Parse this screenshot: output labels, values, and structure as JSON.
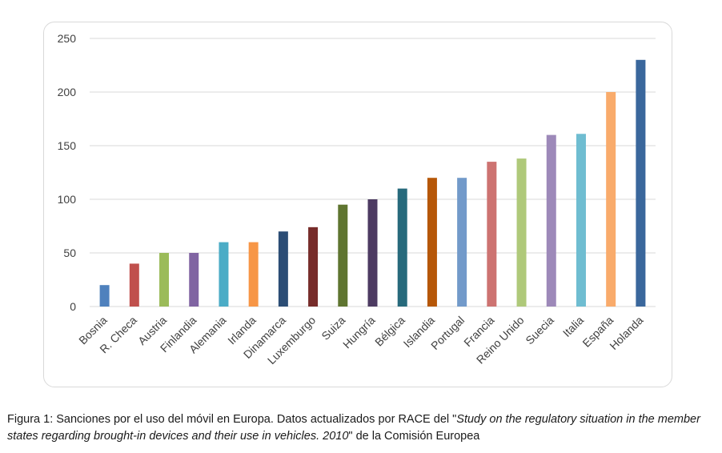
{
  "chart_data": {
    "type": "bar",
    "categories": [
      "Bosnia",
      "R. Checa",
      "Austria",
      "Finlandia",
      "Alemania",
      "Irlanda",
      "Dinamarca",
      "Luxemburgo",
      "Suiza",
      "Hungría",
      "Bélgica",
      "Islandia",
      "Portugal",
      "Francia",
      "Reino Unido",
      "Suecia",
      "Italia",
      "España",
      "Holanda"
    ],
    "values": [
      20,
      40,
      50,
      50,
      60,
      60,
      70,
      74,
      95,
      100,
      110,
      120,
      120,
      135,
      138,
      160,
      161,
      200,
      230
    ],
    "colors": [
      "#4f81bd",
      "#c0504d",
      "#9bbb59",
      "#8064a2",
      "#4bacc6",
      "#f79646",
      "#2c4d75",
      "#772c2a",
      "#5f7530",
      "#4d3b62",
      "#276a7c",
      "#b65708",
      "#729aca",
      "#cd7371",
      "#afc97a",
      "#9d89b9",
      "#6fbdd1",
      "#f9ab6b",
      "#3a679c"
    ],
    "ylim": [
      0,
      250
    ],
    "yticks": [
      0,
      50,
      100,
      150,
      200,
      250
    ],
    "grid": true,
    "title": "",
    "xlabel": "",
    "ylabel": ""
  },
  "caption": {
    "part1": "Figura 1: Sanciones por el uso del móvil en Europa. Datos actualizados por RACE del \"",
    "italic1": "Study on the regulatory situation in the member states regarding brought-in devices and their use in vehicles. 2010",
    "part2": "\" de la Comisión Europea"
  }
}
